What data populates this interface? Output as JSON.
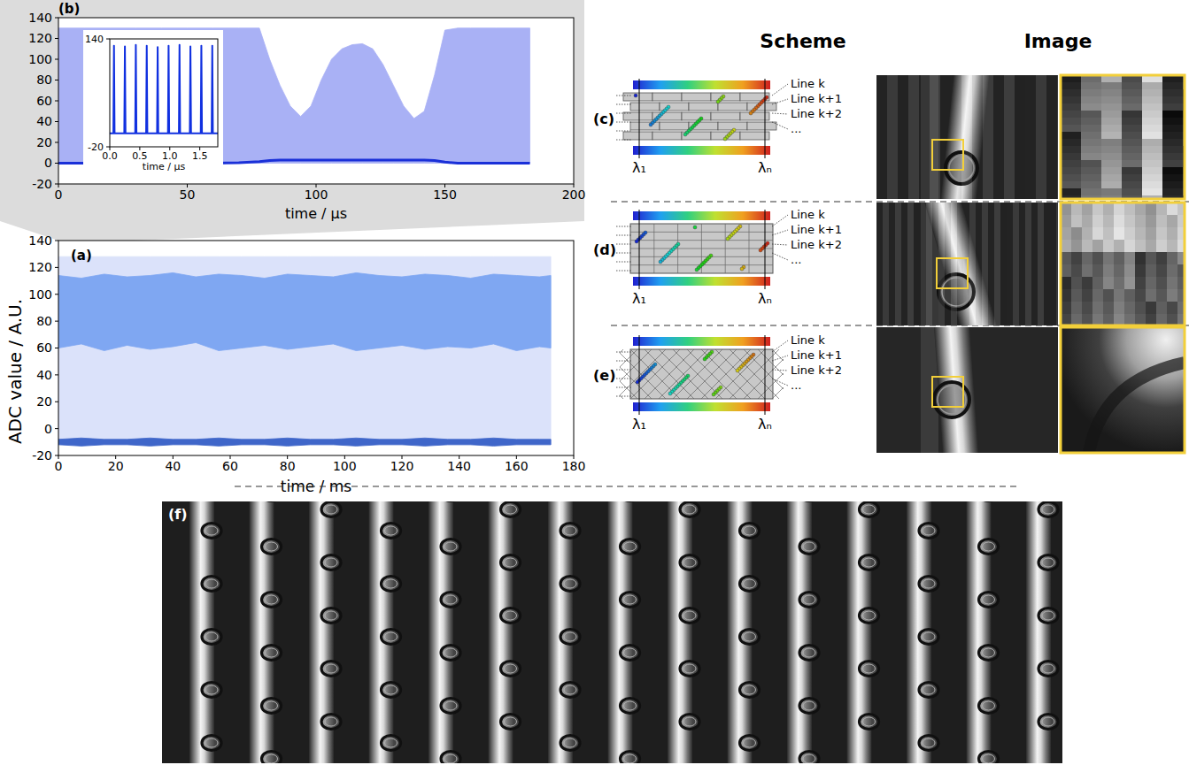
{
  "chart_data": [
    {
      "type": "area",
      "title": "(a)",
      "x_label": "time / ms",
      "y_label": "ADC value / A.U.",
      "xlim": [
        0,
        180
      ],
      "ylim": [
        -20,
        140
      ],
      "xticks": [
        0,
        20,
        40,
        60,
        80,
        100,
        120,
        140,
        160,
        180
      ],
      "yticks": [
        -20,
        0,
        20,
        40,
        60,
        80,
        100,
        120,
        140
      ],
      "x": [
        0,
        8,
        16,
        24,
        32,
        40,
        48,
        56,
        64,
        72,
        80,
        88,
        96,
        104,
        112,
        120,
        128,
        136,
        144,
        152,
        160,
        168,
        172
      ],
      "series": [
        {
          "type": "area",
          "color": "#dbe2fa",
          "values": [
            128,
            128,
            128,
            128,
            128,
            128,
            128,
            128,
            128,
            128,
            128,
            128,
            128,
            128,
            128,
            128,
            128,
            128,
            128,
            128,
            128,
            128,
            128
          ],
          "lower": [
            -12,
            -12,
            -12,
            -12,
            -12,
            -12,
            -12,
            -12,
            -12,
            -12,
            -12,
            -12,
            -12,
            -12,
            -12,
            -12,
            -12,
            -12,
            -12,
            -12,
            -12,
            -12,
            -12
          ]
        },
        {
          "type": "area",
          "color": "#7fa7f2",
          "values": [
            114,
            112,
            115,
            113,
            114,
            116,
            113,
            115,
            114,
            112,
            115,
            114,
            113,
            116,
            114,
            113,
            115,
            114,
            112,
            115,
            114,
            113,
            114
          ],
          "lower": [
            60,
            63,
            58,
            62,
            59,
            61,
            64,
            58,
            60,
            62,
            59,
            61,
            63,
            58,
            60,
            62,
            59,
            61,
            60,
            63,
            58,
            61,
            60
          ]
        },
        {
          "type": "area",
          "color": "#3f66c9",
          "values": [
            -8,
            -7,
            -8,
            -8,
            -7,
            -8,
            -8,
            -7,
            -8,
            -8,
            -7,
            -8,
            -8,
            -7,
            -8,
            -8,
            -7,
            -8,
            -8,
            -7,
            -8,
            -8,
            -8
          ],
          "lower": [
            -12,
            -13,
            -12,
            -12,
            -13,
            -12,
            -12,
            -13,
            -12,
            -12,
            -13,
            -12,
            -12,
            -13,
            -12,
            -12,
            -13,
            -12,
            -12,
            -13,
            -12,
            -12,
            -12
          ]
        }
      ]
    },
    {
      "type": "area",
      "title": "(b)",
      "x_label": "time / µs",
      "xlim": [
        0,
        200
      ],
      "ylim": [
        -20,
        140
      ],
      "xticks": [
        0,
        50,
        100,
        150,
        200
      ],
      "yticks": [
        -20,
        0,
        20,
        40,
        60,
        80,
        100,
        120,
        140
      ],
      "x": [
        0,
        10,
        20,
        30,
        40,
        50,
        60,
        70,
        78,
        82,
        86,
        90,
        94,
        98,
        102,
        106,
        110,
        114,
        118,
        122,
        126,
        130,
        134,
        138,
        142,
        146,
        150,
        155,
        160,
        170,
        183
      ],
      "series": [
        {
          "type": "area",
          "color": "#a9b1f5",
          "values": [
            130,
            130,
            130,
            130,
            130,
            130,
            130,
            130,
            130,
            100,
            75,
            55,
            45,
            55,
            80,
            100,
            110,
            114,
            115,
            110,
            95,
            75,
            55,
            43,
            50,
            85,
            128,
            130,
            130,
            130,
            130
          ],
          "lower": [
            0,
            0,
            0,
            0,
            0,
            0,
            0,
            0,
            0,
            0,
            0,
            0,
            0,
            0,
            0,
            0,
            0,
            0,
            0,
            0,
            0,
            0,
            0,
            0,
            0,
            0,
            0,
            0,
            0,
            0,
            0
          ]
        },
        {
          "type": "line",
          "color": "#1a30d8",
          "values": [
            0,
            0,
            0,
            0,
            0,
            0,
            0,
            0.5,
            1.5,
            2.5,
            3,
            3,
            3,
            3,
            3,
            3,
            3,
            3,
            3,
            3,
            3,
            3,
            3,
            3,
            3,
            2.5,
            1,
            0,
            0,
            0,
            0
          ]
        }
      ]
    },
    {
      "type": "line",
      "x_label": "time / µs",
      "xlim": [
        0,
        1.8
      ],
      "ylim": [
        -20,
        140
      ],
      "xticks": [
        {
          "value": 0,
          "label": "0.0"
        },
        {
          "value": 0.5,
          "label": "0.5"
        },
        {
          "value": 1,
          "label": "1.0"
        },
        {
          "value": 1.5,
          "label": "1.5"
        }
      ],
      "yticks": [
        -20,
        140
      ],
      "x": [
        0,
        0.06,
        0.07,
        0.08,
        0.242,
        0.252,
        0.262,
        0.424,
        0.434,
        0.444,
        0.606,
        0.616,
        0.626,
        0.788,
        0.798,
        0.808,
        0.97,
        0.98,
        0.99,
        1.152,
        1.162,
        1.172,
        1.334,
        1.344,
        1.354,
        1.516,
        1.526,
        1.536,
        1.698,
        1.708,
        1.718,
        1.8
      ],
      "series": [
        {
          "type": "line",
          "color": "#1030e0",
          "values": [
            0,
            0,
            130,
            0,
            0,
            129,
            0,
            0,
            131,
            0,
            0,
            130,
            0,
            0,
            128,
            0,
            0,
            130,
            0,
            0,
            131,
            0,
            0,
            129,
            0,
            0,
            130,
            0,
            0,
            130,
            0,
            0
          ]
        }
      ]
    }
  ],
  "figure": {
    "headers": {
      "scheme": "Scheme",
      "image": "Image"
    },
    "schemes": [
      {
        "label": "(c)",
        "lines": [
          "Line k",
          "Line k+1",
          "Line k+2",
          "..."
        ],
        "wavelengths": [
          "λ₁",
          "λₙ"
        ]
      },
      {
        "label": "(d)",
        "lines": [
          "Line k",
          "Line k+1",
          "Line k+2",
          "..."
        ],
        "wavelengths": [
          "λ₁",
          "λₙ"
        ]
      },
      {
        "label": "(e)",
        "lines": [
          "Line k",
          "Line k+1",
          "Line k+2",
          "..."
        ],
        "wavelengths": [
          "λ₁",
          "λₙ"
        ]
      }
    ],
    "image_panel": {
      "label": "(f)"
    }
  }
}
